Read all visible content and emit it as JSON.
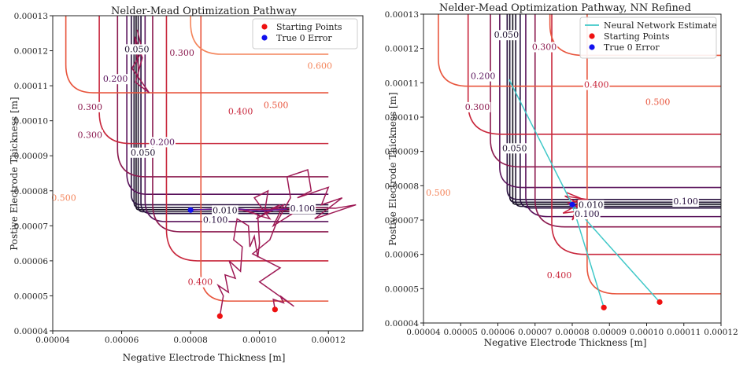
{
  "chart_data": [
    {
      "type": "line",
      "title": "Nelder-Mead Optimization Pathway",
      "xlabel": "Negative Electrode Thickness [m]",
      "ylabel": "Postive Electrode Thickness [m]",
      "xlim": [
        4e-05,
        0.00013
      ],
      "ylim": [
        4e-05,
        0.00013
      ],
      "xticks": [
        "0.00004",
        "0.00006",
        "0.00008",
        "0.00010",
        "0.00012"
      ],
      "yticks": [
        "0.00004",
        "0.00005",
        "0.00006",
        "0.00007",
        "0.00008",
        "0.00009",
        "0.00010",
        "0.00011",
        "0.00012",
        "0.00013"
      ],
      "grid": false,
      "legend_position": "top-right",
      "legend": [
        {
          "label": "Starting Points",
          "color": "#ee1111"
        },
        {
          "label": "True 0 Error",
          "color": "#1111ee"
        }
      ],
      "contour_levels": [
        0.01,
        0.05,
        0.1,
        0.2,
        0.3,
        0.4,
        0.5,
        0.6
      ],
      "contour_labels": [
        {
          "text": "0.600",
          "x": 0.0001175,
          "y": 0.0001157,
          "color": "#f4845a"
        },
        {
          "text": "0.500",
          "x": 0.0001048,
          "y": 0.0001045,
          "color": "#e8553d"
        },
        {
          "text": "0.400",
          "x": 9.45e-05,
          "y": 0.0001027,
          "color": "#c8273c"
        },
        {
          "text": "0.300",
          "x": 7.75e-05,
          "y": 0.0001195,
          "color": "#8b1a4f"
        },
        {
          "text": "0.200",
          "x": 5.82e-05,
          "y": 0.000112,
          "color": "#5a145c"
        },
        {
          "text": "0.300",
          "x": 5.08e-05,
          "y": 0.000104,
          "color": "#8b1a4f"
        },
        {
          "text": "0.300",
          "x": 5.08e-05,
          "y": 9.6e-05,
          "color": "#8b1a4f"
        },
        {
          "text": "0.200",
          "x": 7.18e-05,
          "y": 9.4e-05,
          "color": "#5a145c"
        },
        {
          "text": "0.050",
          "x": 6.62e-05,
          "y": 9.1e-05,
          "color": "#1f1230"
        },
        {
          "text": "0.050",
          "x": 6.44e-05,
          "y": 0.0001205,
          "color": "#1f1230"
        },
        {
          "text": "0.500",
          "x": 4.32e-05,
          "y": 7.8e-05,
          "color": "#f4845a"
        },
        {
          "text": "0.100",
          "x": 0.0001125,
          "y": 7.5e-05,
          "color": "#2a1140"
        },
        {
          "text": "0.100",
          "x": 8.72e-05,
          "y": 7.18e-05,
          "color": "#2a1140"
        },
        {
          "text": "0.010",
          "x": 9e-05,
          "y": 7.45e-05,
          "color": "#1f1230"
        },
        {
          "text": "0.400",
          "x": 8.28e-05,
          "y": 5.4e-05,
          "color": "#c8273c"
        }
      ],
      "series": [
        {
          "name": "Starting Points",
          "type": "scatter",
          "color": "#ee1111",
          "x": [
            8.85e-05,
            0.0001045
          ],
          "y": [
            4.42e-05,
            4.61e-05
          ]
        },
        {
          "name": "True 0 Error",
          "type": "scatter",
          "color": "#1111ee",
          "x": [
            8e-05
          ],
          "y": [
            7.45e-05
          ]
        }
      ],
      "paths": [
        {
          "color": "#9e1a55",
          "x": [
            8.85e-05,
            8.95e-05,
            8.8e-05,
            9.1e-05,
            9e-05,
            9.3e-05,
            9.12e-05,
            9.45e-05,
            9.5e-05,
            9.25e-05,
            9.35e-05,
            9.68e-05,
            9.72e-05,
            9.85e-05,
            9.95e-05,
            0.0001,
            9.95e-05,
            0.000103,
            9.85e-05,
            0.0001025,
            0.0001015,
            0.000106,
            9.9e-05,
            0.000107,
            0.000104,
            0.000112,
            9.6e-05,
            0.0001,
            9.4e-05
          ],
          "y": [
            4.42e-05,
            5e-05,
            5.3e-05,
            5.1e-05,
            5.6e-05,
            5.5e-05,
            6e-05,
            5.7e-05,
            6.4e-05,
            6.6e-05,
            7.2e-05,
            7e-05,
            6.4e-05,
            6.7e-05,
            6.1e-05,
            6.5e-05,
            7.3e-05,
            7.2e-05,
            7.8e-05,
            8e-05,
            7.4e-05,
            7.6e-05,
            7.2e-05,
            7.6e-05,
            7e-05,
            7.5e-05,
            7.45e-05,
            7.3e-05,
            7.48e-05
          ]
        },
        {
          "color": "#9e1a55",
          "x": [
            0.0001045,
            0.000104,
            0.000107,
            0.000106,
            0.00011,
            0.0001,
            0.000106,
            9.8e-05,
            0.000103,
            0.000105,
            0.000109,
            0.000108,
            0.000114,
            0.000115,
            0.000111,
            0.00012,
            0.000118,
            0.000124,
            0.000116,
            0.000128,
            0.000122,
            0.000114,
            0.00011,
            0.000102,
            9.4e-05
          ],
          "y": [
            4.61e-05,
            4.9e-05,
            4.8e-05,
            5e-05,
            4.7e-05,
            5.4e-05,
            5.8e-05,
            6.2e-05,
            6.6e-05,
            7.1e-05,
            7.8e-05,
            8.4e-05,
            8.6e-05,
            8e-05,
            7.8e-05,
            8.1e-05,
            7.6e-05,
            7.8e-05,
            7.2e-05,
            7.6e-05,
            7.5e-05,
            7.52e-05,
            7.4e-05,
            7.48e-05,
            7.45e-05
          ]
        },
        {
          "color": "#9e1a55",
          "x": [
            6.45e-05,
            6.6e-05,
            6.3e-05,
            6.8e-05,
            6.4e-05,
            6.6e-05,
            6.38e-05,
            6.5e-05,
            6.42e-05
          ],
          "y": [
            0.000126,
            0.00012,
            0.000115,
            0.000108,
            0.000111,
            0.000118,
            0.000124,
            0.000114,
            0.00012
          ]
        },
        {
          "color": "#6a1b9a",
          "x": [
            8e-05,
            9.2e-05,
            0.0001,
            0.000108
          ],
          "y": [
            7.45e-05,
            7.5e-05,
            7.42e-05,
            7.48e-05
          ]
        }
      ]
    },
    {
      "type": "line",
      "title": "Nelder-Mead Optimization Pathway, NN Refined",
      "xlabel": "Negative Electrode Thickness [m]",
      "ylabel": "Postive Electrode Thickness [m]",
      "xlim": [
        4e-05,
        0.00012
      ],
      "ylim": [
        4e-05,
        0.00013
      ],
      "xticks": [
        "0.00004",
        "0.00005",
        "0.00006",
        "0.00007",
        "0.00008",
        "0.00009",
        "0.00010",
        "0.00011",
        "0.00012"
      ],
      "yticks": [
        "0.00004",
        "0.00005",
        "0.00006",
        "0.00007",
        "0.00008",
        "0.00009",
        "0.00010",
        "0.00011",
        "0.00012",
        "0.00013"
      ],
      "grid": false,
      "legend_position": "top-right",
      "legend": [
        {
          "label": "Neural Network Estimate",
          "color": "#40c8c8"
        },
        {
          "label": "Starting Points",
          "color": "#ee1111"
        },
        {
          "label": "True 0 Error",
          "color": "#1111ee"
        }
      ],
      "contour_levels": [
        0.01,
        0.05,
        0.1,
        0.2,
        0.3,
        0.4,
        0.5
      ],
      "contour_labels": [
        {
          "text": "0.500",
          "x": 0.000103,
          "y": 0.0001045,
          "color": "#e8553d"
        },
        {
          "text": "0.400",
          "x": 8.65e-05,
          "y": 0.0001095,
          "color": "#c8273c"
        },
        {
          "text": "0.300",
          "x": 7.25e-05,
          "y": 0.0001205,
          "color": "#8b1a4f"
        },
        {
          "text": "0.200",
          "x": 5.6e-05,
          "y": 0.000112,
          "color": "#5a145c"
        },
        {
          "text": "0.300",
          "x": 5.45e-05,
          "y": 0.000103,
          "color": "#8b1a4f"
        },
        {
          "text": "0.050",
          "x": 6.23e-05,
          "y": 0.000124,
          "color": "#1f1230"
        },
        {
          "text": "0.050",
          "x": 6.45e-05,
          "y": 9.1e-05,
          "color": "#1f1230"
        },
        {
          "text": "0.500",
          "x": 4.4e-05,
          "y": 7.8e-05,
          "color": "#f4845a"
        },
        {
          "text": "0.100",
          "x": 0.0001105,
          "y": 7.55e-05,
          "color": "#2a1140"
        },
        {
          "text": "0.010",
          "x": 8.5e-05,
          "y": 7.45e-05,
          "color": "#1f1230"
        },
        {
          "text": "0.100",
          "x": 8.4e-05,
          "y": 7.18e-05,
          "color": "#2a1140"
        },
        {
          "text": "0.400",
          "x": 7.65e-05,
          "y": 5.4e-05,
          "color": "#c8273c"
        }
      ],
      "series": [
        {
          "name": "Neural Network Estimate",
          "type": "line",
          "color": "#40c8c8",
          "x": [
            8.85e-05,
            8e-05,
            6.3e-05,
            8e-05,
            0.0001035
          ],
          "y": [
            4.45e-05,
            7.45e-05,
            0.000111,
            7.45e-05,
            4.61e-05
          ]
        },
        {
          "name": "Starting Points",
          "type": "scatter",
          "color": "#ee1111",
          "x": [
            8.85e-05,
            0.0001035
          ],
          "y": [
            4.45e-05,
            4.61e-05
          ]
        },
        {
          "name": "True 0 Error",
          "type": "scatter",
          "color": "#1111ee",
          "x": [
            8e-05
          ],
          "y": [
            7.45e-05
          ]
        }
      ],
      "paths": [
        {
          "color": "#c81e3c",
          "x": [
            7.85e-05,
            8.3e-05,
            7.9e-05,
            8.45e-05,
            7.75e-05,
            8.4e-05,
            7.8e-05,
            8.3e-05,
            8e-05,
            8.2e-05,
            7.9e-05
          ],
          "y": [
            7.8e-05,
            7.6e-05,
            7.5e-05,
            7.3e-05,
            7.2e-05,
            7.6e-05,
            7.7e-05,
            7.4e-05,
            7e-05,
            7.6e-05,
            7.45e-05
          ]
        },
        {
          "color": "#6a1b9a",
          "x": [
            7.9e-05,
            8.1e-05,
            7.98e-05,
            8.05e-05
          ],
          "y": [
            7.48e-05,
            7.42e-05,
            7.46e-05,
            7.44e-05
          ]
        }
      ]
    }
  ]
}
